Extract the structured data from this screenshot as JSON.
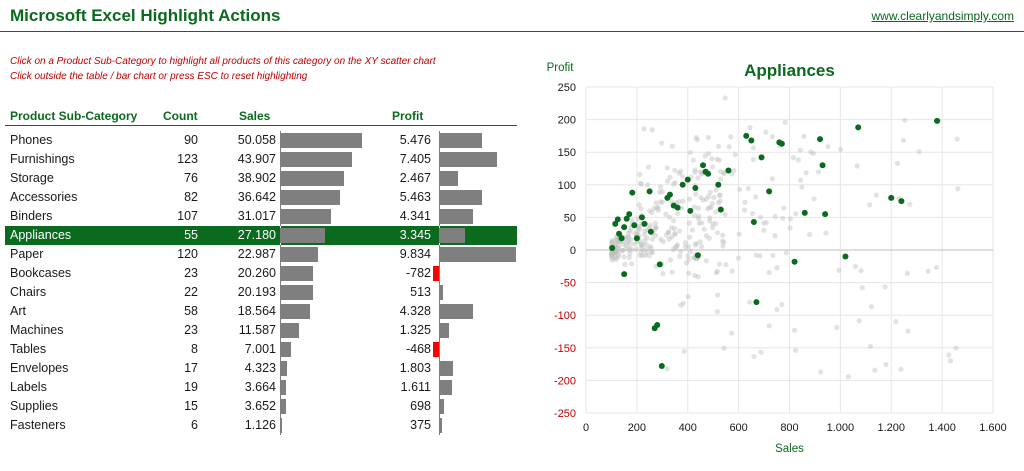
{
  "header": {
    "title": "Microsoft Excel Highlight Actions",
    "link": "www.clearlyandsimply.com"
  },
  "instructions": [
    "Click on a Product Sub-Category to highlight all products of this category on the XY scatter chart",
    "Click outside the table / bar chart or press ESC to reset highlighting"
  ],
  "table": {
    "headers": {
      "category": "Product Sub-Category",
      "count": "Count",
      "sales": "Sales",
      "profit": "Profit"
    },
    "selected": "Appliances",
    "rows": [
      {
        "category": "Phones",
        "count": "90",
        "sales": "50.058",
        "profit": "5.476"
      },
      {
        "category": "Furnishings",
        "count": "123",
        "sales": "43.907",
        "profit": "7.405"
      },
      {
        "category": "Storage",
        "count": "76",
        "sales": "38.902",
        "profit": "2.467"
      },
      {
        "category": "Accessories",
        "count": "82",
        "sales": "36.642",
        "profit": "5.463"
      },
      {
        "category": "Binders",
        "count": "107",
        "sales": "31.017",
        "profit": "4.341"
      },
      {
        "category": "Appliances",
        "count": "55",
        "sales": "27.180",
        "profit": "3.345"
      },
      {
        "category": "Paper",
        "count": "120",
        "sales": "22.987",
        "profit": "9.834"
      },
      {
        "category": "Bookcases",
        "count": "23",
        "sales": "20.260",
        "profit": "-782"
      },
      {
        "category": "Chairs",
        "count": "22",
        "sales": "20.193",
        "profit": "513"
      },
      {
        "category": "Art",
        "count": "58",
        "sales": "18.564",
        "profit": "4.328"
      },
      {
        "category": "Machines",
        "count": "23",
        "sales": "11.587",
        "profit": "1.325"
      },
      {
        "category": "Tables",
        "count": "8",
        "sales": "7.001",
        "profit": "-468"
      },
      {
        "category": "Envelopes",
        "count": "17",
        "sales": "4.323",
        "profit": "1.803"
      },
      {
        "category": "Labels",
        "count": "19",
        "sales": "3.664",
        "profit": "1.611"
      },
      {
        "category": "Supplies",
        "count": "15",
        "sales": "3.652",
        "profit": "698"
      },
      {
        "category": "Fasteners",
        "count": "6",
        "sales": "1.126",
        "profit": "375"
      }
    ]
  },
  "colors": {
    "accent": "#0a6a1e",
    "bar": "#7f7f7f",
    "negative": "#ff0000",
    "instructions": "#c00000",
    "y_axis_negative_labels": "#c00000",
    "background_points": "#bfbfbf"
  },
  "chart_data": [
    {
      "type": "bar",
      "orientation": "horizontal",
      "series": [
        {
          "name": "Sales",
          "values": [
            50058,
            43907,
            38902,
            36642,
            31017,
            27180,
            22987,
            20260,
            20193,
            18564,
            11587,
            7001,
            4323,
            3664,
            3652,
            1126
          ]
        }
      ],
      "categories": [
        "Phones",
        "Furnishings",
        "Storage",
        "Accessories",
        "Binders",
        "Appliances",
        "Paper",
        "Bookcases",
        "Chairs",
        "Art",
        "Machines",
        "Tables",
        "Envelopes",
        "Labels",
        "Supplies",
        "Fasteners"
      ]
    },
    {
      "type": "bar",
      "orientation": "horizontal",
      "series": [
        {
          "name": "Profit",
          "values": [
            5476,
            7405,
            2467,
            5463,
            4341,
            3345,
            9834,
            -782,
            513,
            4328,
            1325,
            -468,
            1803,
            1611,
            698,
            375
          ]
        }
      ],
      "categories": [
        "Phones",
        "Furnishings",
        "Storage",
        "Accessories",
        "Binders",
        "Appliances",
        "Paper",
        "Bookcases",
        "Chairs",
        "Art",
        "Machines",
        "Tables",
        "Envelopes",
        "Labels",
        "Supplies",
        "Fasteners"
      ]
    },
    {
      "type": "scatter",
      "title": "Appliances",
      "xlabel": "Sales",
      "ylabel": "Profit",
      "xlim": [
        0,
        1600
      ],
      "ylim": [
        -250,
        250
      ],
      "xticks": [
        "0",
        "200",
        "400",
        "600",
        "800",
        "1.000",
        "1.200",
        "1.400",
        "1.600"
      ],
      "yticks": [
        "250",
        "200",
        "150",
        "100",
        "50",
        "0",
        "-50",
        "-100",
        "-150",
        "-200",
        "-250"
      ],
      "grid": true,
      "highlighted": [
        [
          103,
          3
        ],
        [
          115,
          40
        ],
        [
          125,
          47
        ],
        [
          130,
          25
        ],
        [
          140,
          18
        ],
        [
          150,
          35
        ],
        [
          150,
          -37
        ],
        [
          160,
          48
        ],
        [
          170,
          55
        ],
        [
          182,
          88
        ],
        [
          190,
          38
        ],
        [
          200,
          18
        ],
        [
          220,
          50
        ],
        [
          230,
          40
        ],
        [
          250,
          90
        ],
        [
          255,
          28
        ],
        [
          270,
          -120
        ],
        [
          280,
          -115
        ],
        [
          290,
          -22
        ],
        [
          298,
          -178
        ],
        [
          320,
          80
        ],
        [
          330,
          85
        ],
        [
          345,
          68
        ],
        [
          360,
          65
        ],
        [
          380,
          100
        ],
        [
          400,
          108
        ],
        [
          410,
          60
        ],
        [
          430,
          95
        ],
        [
          440,
          -8
        ],
        [
          460,
          130
        ],
        [
          470,
          120
        ],
        [
          480,
          117
        ],
        [
          520,
          100
        ],
        [
          530,
          62
        ],
        [
          560,
          122
        ],
        [
          630,
          175
        ],
        [
          650,
          168
        ],
        [
          660,
          43
        ],
        [
          670,
          -80
        ],
        [
          690,
          142
        ],
        [
          720,
          90
        ],
        [
          760,
          165
        ],
        [
          770,
          163
        ],
        [
          820,
          -18
        ],
        [
          860,
          57
        ],
        [
          920,
          170
        ],
        [
          930,
          130
        ],
        [
          940,
          55
        ],
        [
          1020,
          -10
        ],
        [
          1070,
          188
        ],
        [
          1200,
          80
        ],
        [
          1240,
          75
        ],
        [
          1380,
          198
        ]
      ],
      "background_count": 400
    }
  ]
}
